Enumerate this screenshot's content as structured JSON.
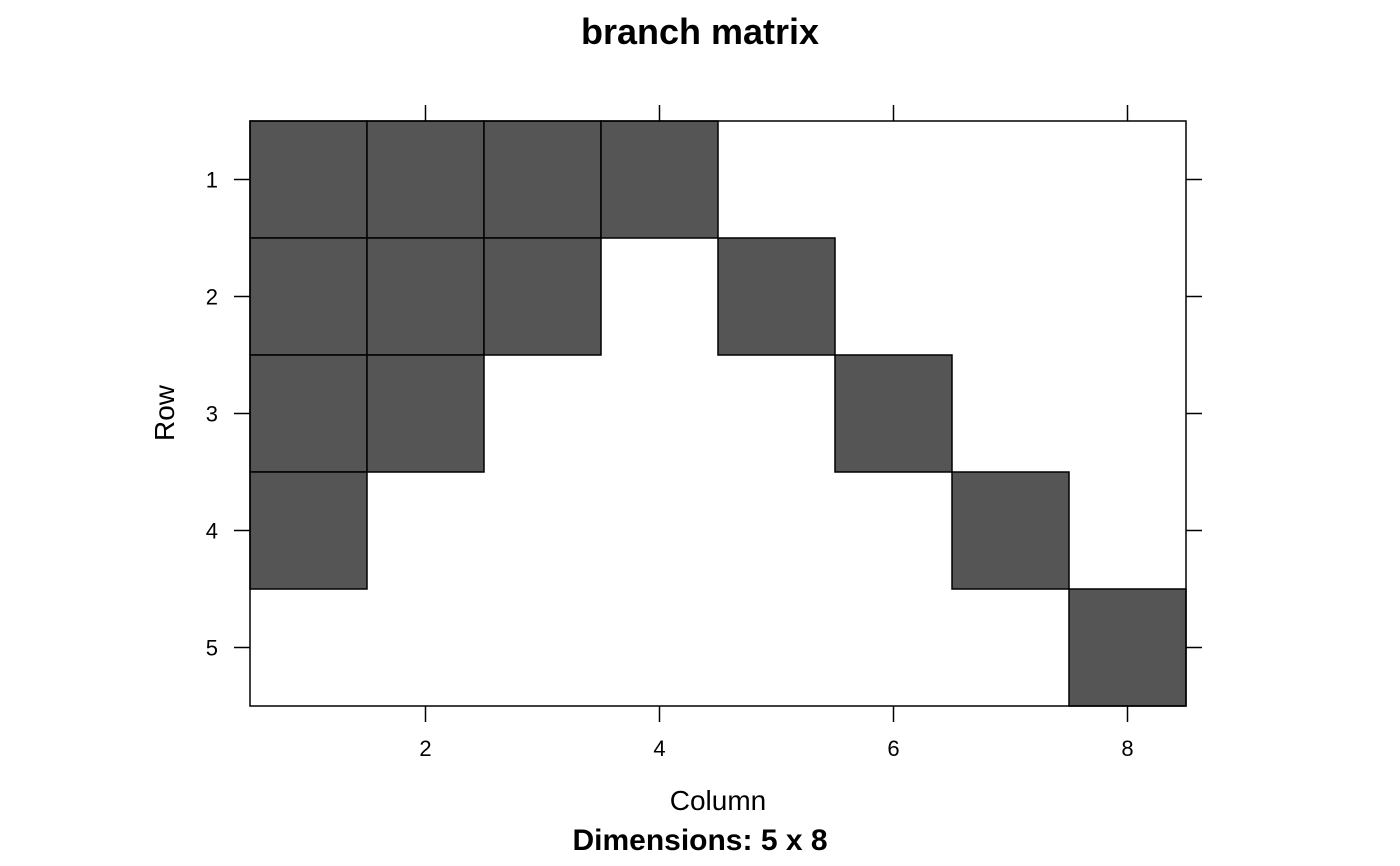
{
  "chart_data": {
    "type": "heatmap",
    "title": "branch matrix",
    "xlabel": "Column",
    "ylabel": "Row",
    "subtitle": "Dimensions: 5 x 8",
    "n_rows": 5,
    "n_cols": 8,
    "x_ticks": [
      2,
      4,
      6,
      8
    ],
    "y_ticks": [
      1,
      2,
      3,
      4,
      5
    ],
    "xlim": [
      0.5,
      8.5
    ],
    "ylim": [
      0.5,
      5.5
    ],
    "grid": false,
    "fill_color": "#555555",
    "empty_color": "#ffffff",
    "matrix": [
      [
        1,
        1,
        1,
        1,
        0,
        0,
        0,
        0
      ],
      [
        1,
        1,
        1,
        0,
        1,
        0,
        0,
        0
      ],
      [
        1,
        1,
        0,
        0,
        0,
        1,
        0,
        0
      ],
      [
        1,
        0,
        0,
        0,
        0,
        0,
        1,
        0
      ],
      [
        0,
        0,
        0,
        0,
        0,
        0,
        0,
        1
      ]
    ]
  }
}
